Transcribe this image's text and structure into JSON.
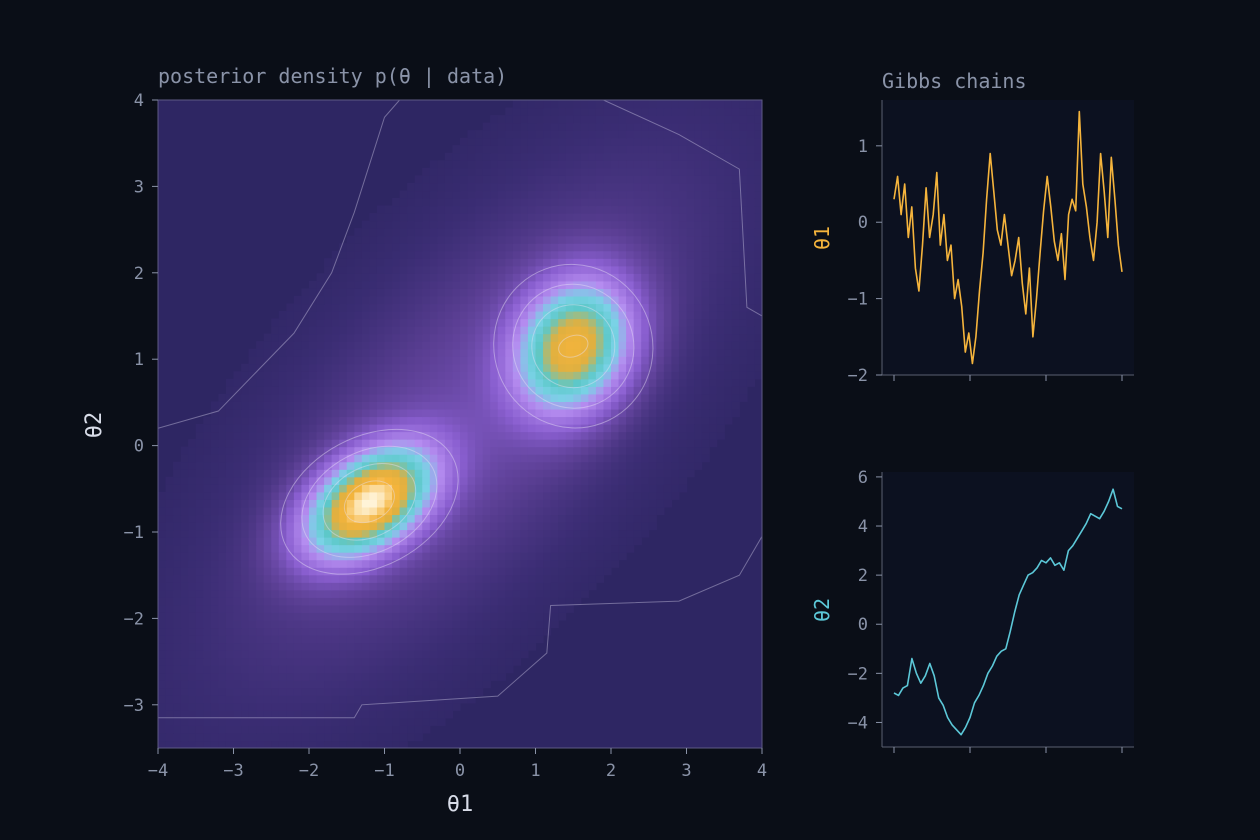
{
  "colors": {
    "background": "#0a0e17",
    "panel_background": "#0c1120",
    "text": "#8a93a8",
    "axis_title": "#d8dce8",
    "theta1_trace": "#f5b43c",
    "theta2_trace": "#5cc8d8",
    "density_colormap": [
      "#2e2663",
      "#3b2d74",
      "#5b3f94",
      "#8a5fd0",
      "#b58cf0",
      "#7ad2e6",
      "#5cc8c8",
      "#e0b040",
      "#f5b43c",
      "#fff4d8"
    ]
  },
  "chart_data": [
    {
      "type": "heatmap",
      "title": "posterior density  p(θ | data)",
      "xlabel": "θ1",
      "ylabel": "θ2",
      "xlim": [
        -4,
        4
      ],
      "ylim": [
        -3.5,
        4
      ],
      "xticks": [
        "−4",
        "−3",
        "−2",
        "−1",
        "0",
        "1",
        "2",
        "3",
        "4"
      ],
      "yticks": [
        "−3",
        "−2",
        "−1",
        "0",
        "1",
        "2",
        "3",
        "4"
      ],
      "grid": false,
      "contours": true,
      "modes": [
        {
          "theta1": -1.2,
          "theta2": -0.65,
          "relative_density": 1.0
        },
        {
          "theta1": 1.5,
          "theta2": 1.15,
          "relative_density": 0.8
        }
      ]
    },
    {
      "type": "line",
      "title": "Gibbs chains",
      "ylabel": "θ1",
      "ylim": [
        -2,
        1.6
      ],
      "yticks": [
        "−2",
        "−1",
        "0",
        "1"
      ],
      "series": [
        {
          "values": [
            0.3,
            0.6,
            0.1,
            0.5,
            -0.2,
            0.2,
            -0.6,
            -0.9,
            -0.3,
            0.45,
            -0.2,
            0.1,
            0.65,
            -0.3,
            0.1,
            -0.5,
            -0.3,
            -1.0,
            -0.75,
            -1.1,
            -1.7,
            -1.45,
            -1.85,
            -1.5,
            -0.9,
            -0.4,
            0.3,
            0.9,
            0.4,
            -0.1,
            -0.3,
            0.1,
            -0.3,
            -0.7,
            -0.5,
            -0.2,
            -0.8,
            -1.2,
            -0.6,
            -1.5,
            -1.0,
            -0.4,
            0.15,
            0.6,
            0.2,
            -0.25,
            -0.5,
            -0.15,
            -0.75,
            0.1,
            0.3,
            0.15,
            1.45,
            0.5,
            0.2,
            -0.2,
            -0.5,
            0.0,
            0.9,
            0.4,
            -0.2,
            0.85,
            0.3,
            -0.3,
            -0.65
          ]
        }
      ]
    },
    {
      "type": "line",
      "ylabel": "θ2",
      "ylim": [
        -5,
        6.2
      ],
      "yticks": [
        "−4",
        "−2",
        "0",
        "2",
        "4",
        "6"
      ],
      "series": [
        {
          "values": [
            -2.8,
            -2.9,
            -2.6,
            -2.5,
            -1.4,
            -2.0,
            -2.4,
            -2.1,
            -1.6,
            -2.1,
            -3.0,
            -3.3,
            -3.8,
            -4.1,
            -4.3,
            -4.5,
            -4.2,
            -3.8,
            -3.2,
            -2.9,
            -2.5,
            -2.0,
            -1.7,
            -1.3,
            -1.1,
            -1.0,
            -0.3,
            0.5,
            1.2,
            1.6,
            2.0,
            2.1,
            2.3,
            2.6,
            2.5,
            2.7,
            2.4,
            2.5,
            2.2,
            3.0,
            3.2,
            3.5,
            3.8,
            4.1,
            4.5,
            4.4,
            4.3,
            4.6,
            5.0,
            5.5,
            4.8,
            4.7
          ]
        }
      ]
    }
  ]
}
